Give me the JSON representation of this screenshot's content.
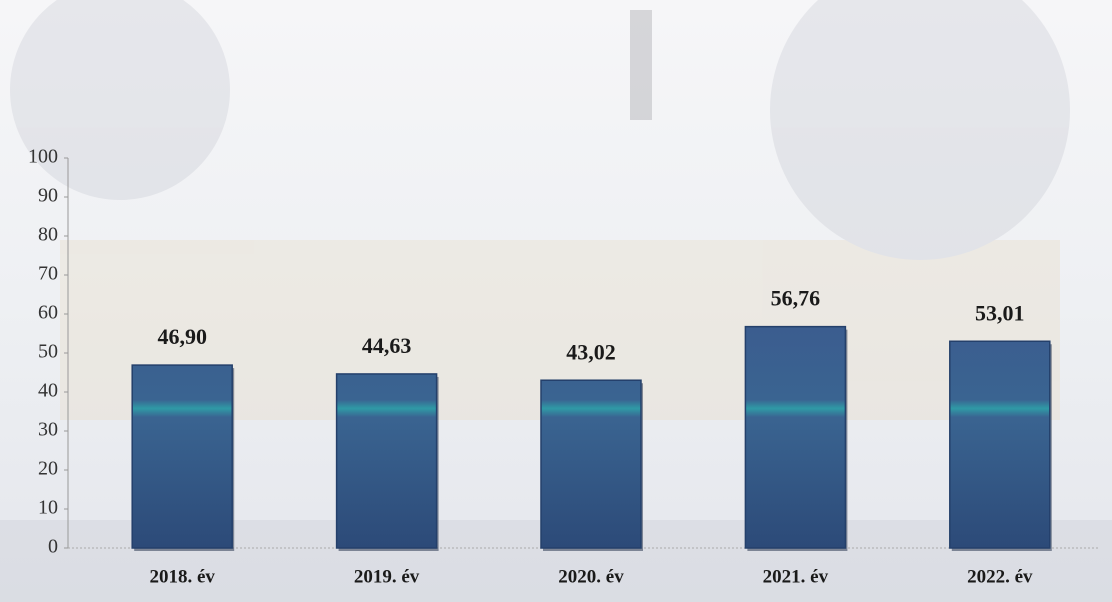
{
  "chart_data": {
    "type": "bar",
    "categories": [
      "2018. év",
      "2019. év",
      "2020. év",
      "2021. év",
      "2022. év"
    ],
    "values": [
      46.9,
      44.63,
      43.02,
      56.76,
      53.01
    ],
    "value_labels": [
      "46,90",
      "44,63",
      "43,02",
      "56,76",
      "53,01"
    ],
    "color": "#3a5a8c",
    "ylim": [
      0,
      100
    ],
    "yticks": [
      0,
      10,
      20,
      30,
      40,
      50,
      60,
      70,
      80,
      90,
      100
    ]
  }
}
